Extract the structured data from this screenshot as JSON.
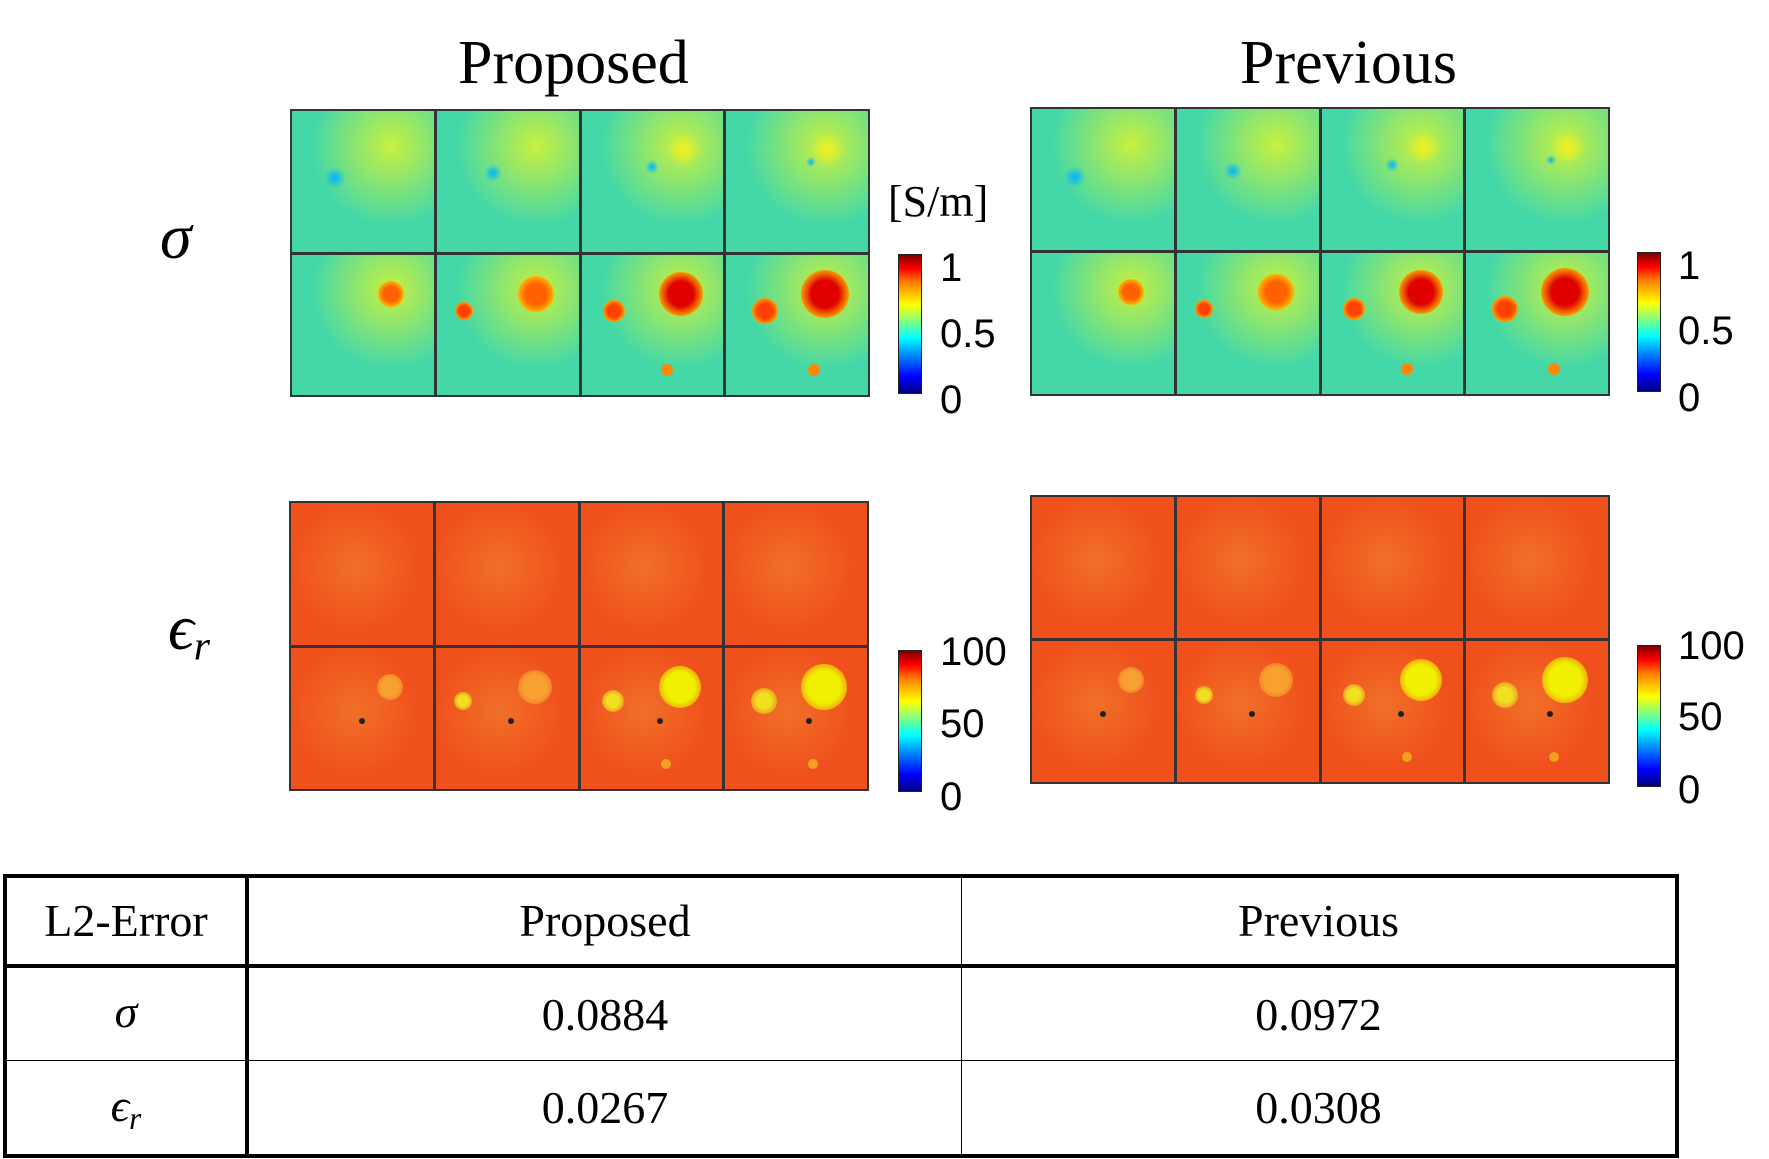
{
  "figure": {
    "column_titles": [
      "Proposed",
      "Previous"
    ],
    "row_symbols": {
      "sigma": "σ",
      "epsilon_base": "ϵ",
      "epsilon_sub": "r"
    },
    "sigma_colorbar": {
      "unit": "[S/m]",
      "ticks": [
        "1",
        "0.5",
        "0"
      ],
      "range": [
        0,
        1
      ]
    },
    "eps_colorbar": {
      "ticks": [
        "100",
        "50",
        "0"
      ],
      "range": [
        0,
        100
      ]
    },
    "colormap": "jet",
    "background_colors": {
      "sigma": "#44d8a8",
      "epsilon": "#f0501c"
    }
  },
  "table": {
    "header": {
      "metric": "L2-Error",
      "proposed": "Proposed",
      "previous": "Previous"
    },
    "rows": [
      {
        "symbol_base": "σ",
        "symbol_sub": "",
        "proposed": "0.0884",
        "previous": "0.0972"
      },
      {
        "symbol_base": "ϵ",
        "symbol_sub": "r",
        "proposed": "0.0267",
        "previous": "0.0308"
      }
    ]
  }
}
